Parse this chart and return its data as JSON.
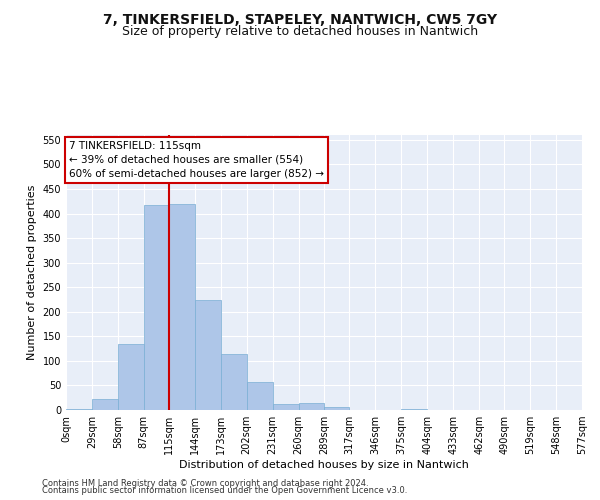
{
  "title": "7, TINKERSFIELD, STAPELEY, NANTWICH, CW5 7GY",
  "subtitle": "Size of property relative to detached houses in Nantwich",
  "xlabel": "Distribution of detached houses by size in Nantwich",
  "ylabel": "Number of detached properties",
  "footer_line1": "Contains HM Land Registry data © Crown copyright and database right 2024.",
  "footer_line2": "Contains public sector information licensed under the Open Government Licence v3.0.",
  "bin_edges": [
    0,
    29,
    58,
    87,
    115,
    144,
    173,
    202,
    231,
    260,
    289,
    317,
    346,
    375,
    404,
    433,
    462,
    490,
    519,
    548,
    577
  ],
  "bar_heights": [
    3,
    22,
    135,
    418,
    420,
    225,
    115,
    58,
    12,
    15,
    7,
    1,
    0,
    2,
    0,
    1,
    0,
    1,
    0,
    1
  ],
  "bar_color": "#aec6e8",
  "bar_edgecolor": "#7aafd4",
  "property_line_x": 115,
  "property_line_color": "#cc0000",
  "annotation_text": "7 TINKERSFIELD: 115sqm\n← 39% of detached houses are smaller (554)\n60% of semi-detached houses are larger (852) →",
  "annotation_box_color": "#ffffff",
  "annotation_box_edgecolor": "#cc0000",
  "ylim": [
    0,
    560
  ],
  "yticks": [
    0,
    50,
    100,
    150,
    200,
    250,
    300,
    350,
    400,
    450,
    500,
    550
  ],
  "background_color": "#e8eef8",
  "title_fontsize": 10,
  "subtitle_fontsize": 9,
  "axis_fontsize": 8,
  "tick_label_fontsize": 7,
  "footer_fontsize": 6
}
